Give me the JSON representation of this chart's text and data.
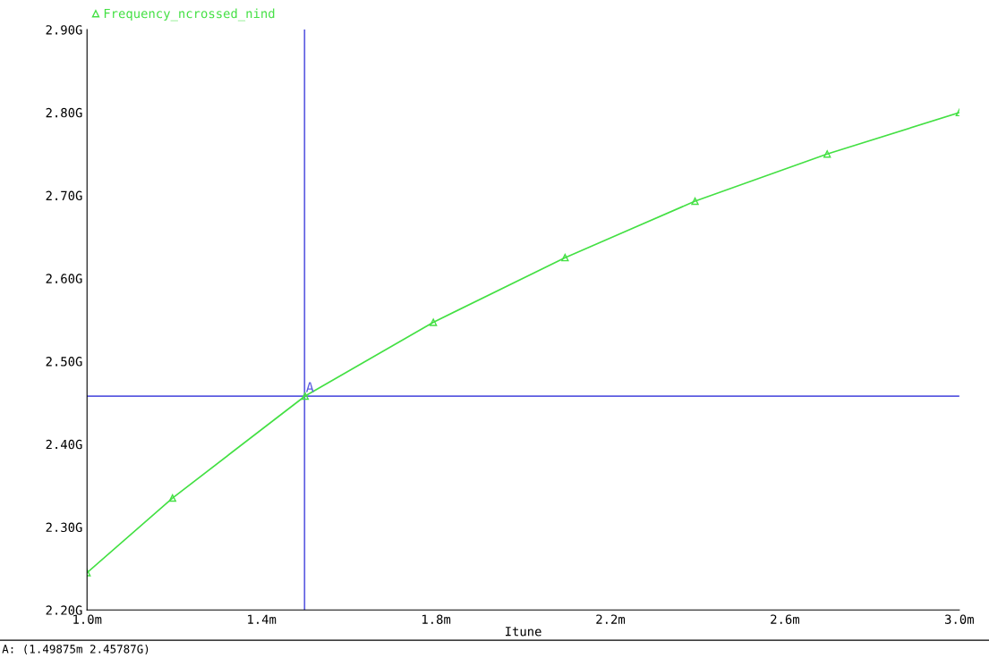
{
  "chart_data": {
    "type": "line",
    "xlabel": "Itune",
    "x": [
      1.0,
      1.196,
      1.5,
      1.794,
      2.096,
      2.394,
      2.697,
      3.0
    ],
    "series": [
      {
        "name": "Frequency_ncrossed_nind",
        "color": "#44e044",
        "values": [
          2.245,
          2.335,
          2.458,
          2.547,
          2.625,
          2.693,
          2.75,
          2.8
        ]
      }
    ],
    "marker": "triangle",
    "line_style": "solid",
    "grid": false,
    "legend": "top left",
    "xlim": [
      1.0,
      3.0
    ],
    "ylim": [
      2.2,
      2.9
    ],
    "xticks": [
      {
        "value": 1.0,
        "label": "1.0m"
      },
      {
        "value": 1.4,
        "label": "1.4m"
      },
      {
        "value": 1.8,
        "label": "1.8m"
      },
      {
        "value": 2.2,
        "label": "2.2m"
      },
      {
        "value": 2.6,
        "label": "2.6m"
      },
      {
        "value": 3.0,
        "label": "3.0m"
      }
    ],
    "yticks": [
      {
        "value": 2.2,
        "label": "2.20G"
      },
      {
        "value": 2.3,
        "label": "2.30G"
      },
      {
        "value": 2.4,
        "label": "2.40G"
      },
      {
        "value": 2.5,
        "label": "2.50G"
      },
      {
        "value": 2.6,
        "label": "2.60G"
      },
      {
        "value": 2.7,
        "label": "2.70G"
      },
      {
        "value": 2.8,
        "label": "2.80G"
      },
      {
        "value": 2.9,
        "label": "2.90G"
      }
    ],
    "ref_lines": [
      {
        "axis": "x",
        "value": 1.49875,
        "color": "#5a5ae0"
      },
      {
        "axis": "y",
        "value": 2.45787,
        "color": "#5a5ae0"
      }
    ],
    "annotations": [
      {
        "text": "A",
        "x": 1.49875,
        "y": 2.45787
      },
      "A: (1.49875m 2.45787G)"
    ]
  }
}
